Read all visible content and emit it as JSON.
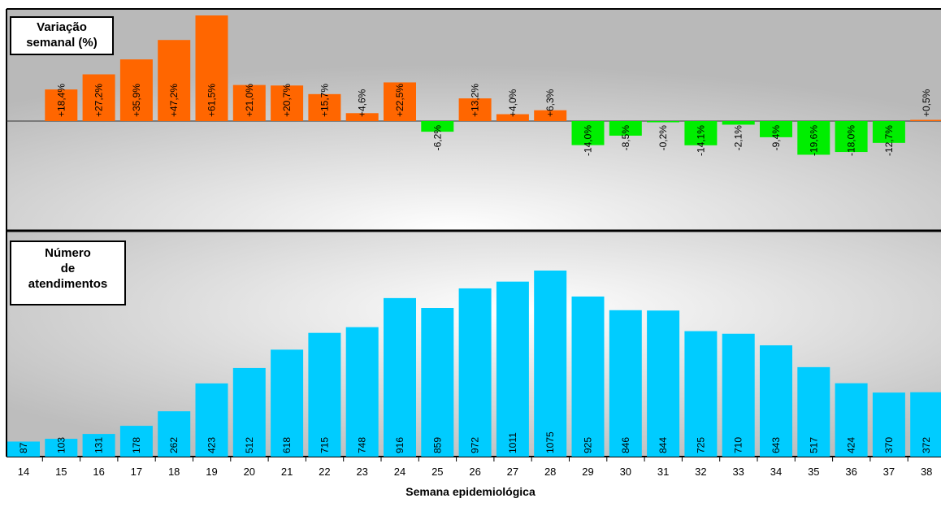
{
  "chart_data": [
    {
      "type": "bar",
      "title": "Variação semanal (%)",
      "title_lines": [
        "Variação",
        "semanal (%)"
      ],
      "categories": [
        "14",
        "15",
        "16",
        "17",
        "18",
        "19",
        "20",
        "21",
        "22",
        "23",
        "24",
        "25",
        "26",
        "27",
        "28",
        "29",
        "30",
        "31",
        "32",
        "33",
        "34",
        "35",
        "36",
        "37",
        "38"
      ],
      "values": [
        null,
        18.4,
        27.2,
        35.9,
        47.2,
        61.5,
        21.0,
        20.7,
        15.7,
        4.6,
        22.5,
        -6.2,
        13.2,
        4.0,
        6.3,
        -14.0,
        -8.5,
        -0.2,
        -14.1,
        -2.1,
        -9.4,
        -19.6,
        -18.0,
        -12.7,
        0.5
      ],
      "labels": [
        "",
        "+18,4%",
        "+27,2%",
        "+35,9%",
        "+47,2%",
        "+61,5%",
        "+21,0%",
        "+20,7%",
        "+15,7%",
        "+4,6%",
        "+22,5%",
        "-6,2%",
        "+13,2%",
        "+4,0%",
        "+6,3%",
        "-14,0%",
        "-8,5%",
        "-0,2%",
        "-14,1%",
        "-2,1%",
        "-9,4%",
        "-19,6%",
        "-18,0%",
        "-12,7%",
        "+0,5%"
      ],
      "colors": {
        "positive": "#ff6600",
        "negative": "#00ee00"
      }
    },
    {
      "type": "bar",
      "title": "Número de atendimentos",
      "title_lines": [
        "Número",
        "de",
        "atendimentos"
      ],
      "xlabel": "Semana epidemiológica",
      "categories": [
        "14",
        "15",
        "16",
        "17",
        "18",
        "19",
        "20",
        "21",
        "22",
        "23",
        "24",
        "25",
        "26",
        "27",
        "28",
        "29",
        "30",
        "31",
        "32",
        "33",
        "34",
        "35",
        "36",
        "37",
        "38"
      ],
      "values": [
        87,
        103,
        131,
        178,
        262,
        423,
        512,
        618,
        715,
        748,
        916,
        859,
        972,
        1011,
        1075,
        925,
        846,
        844,
        725,
        710,
        643,
        517,
        424,
        370,
        372
      ],
      "ylim": [
        0,
        1200
      ],
      "colors": {
        "bar": "#00ccff"
      }
    }
  ]
}
